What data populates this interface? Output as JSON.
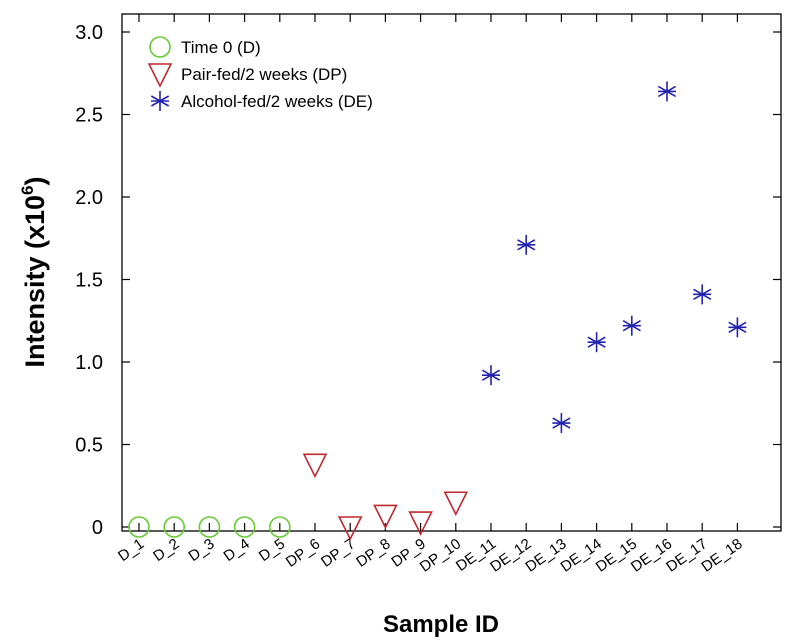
{
  "chart_data": {
    "type": "scatter",
    "xlabel": "Sample ID",
    "ylabel": "Intensity (x10",
    "ylabel_exponent": "6",
    "ylabel_close": ")",
    "ylim": [
      0,
      3.0
    ],
    "yticks": [
      0,
      0.5,
      1.0,
      1.5,
      2.0,
      2.5,
      3.0
    ],
    "ytick_labels": [
      "0",
      "0.5",
      "1.0",
      "1.5",
      "2.0",
      "2.5",
      "3.0"
    ],
    "categories": [
      "D_1",
      "D_2",
      "D_3",
      "D_4",
      "D_5",
      "DP_6",
      "DP_7",
      "DP_8",
      "DP_9",
      "DP_10",
      "DE_11",
      "DE_12",
      "DE_13",
      "DE_14",
      "DE_15",
      "DE_16",
      "DE_17",
      "DE_18"
    ],
    "grid": false,
    "legend_position": "top-left",
    "series": [
      {
        "name": "Time 0 (D)",
        "marker": "circle",
        "color": "#66cc33",
        "points": [
          {
            "x": "D_1",
            "y": 0.0
          },
          {
            "x": "D_2",
            "y": 0.0
          },
          {
            "x": "D_3",
            "y": 0.0
          },
          {
            "x": "D_4",
            "y": 0.0
          },
          {
            "x": "D_5",
            "y": 0.0
          }
        ]
      },
      {
        "name": "Pair-fed/2 weeks (DP)",
        "marker": "triangle-down",
        "color": "#c0282d",
        "points": [
          {
            "x": "DP_6",
            "y": 0.38
          },
          {
            "x": "DP_7",
            "y": 0.0
          },
          {
            "x": "DP_8",
            "y": 0.07
          },
          {
            "x": "DP_9",
            "y": 0.03
          },
          {
            "x": "DP_10",
            "y": 0.15
          }
        ]
      },
      {
        "name": "Alcohol-fed/2 weeks (DE)",
        "marker": "asterisk",
        "color": "#2323b0",
        "points": [
          {
            "x": "DE_11",
            "y": 0.92
          },
          {
            "x": "DE_12",
            "y": 1.71
          },
          {
            "x": "DE_13",
            "y": 0.63
          },
          {
            "x": "DE_14",
            "y": 1.12
          },
          {
            "x": "DE_15",
            "y": 1.22
          },
          {
            "x": "DE_16",
            "y": 2.64
          },
          {
            "x": "DE_17",
            "y": 1.41
          },
          {
            "x": "DE_18",
            "y": 1.21
          }
        ]
      }
    ]
  }
}
